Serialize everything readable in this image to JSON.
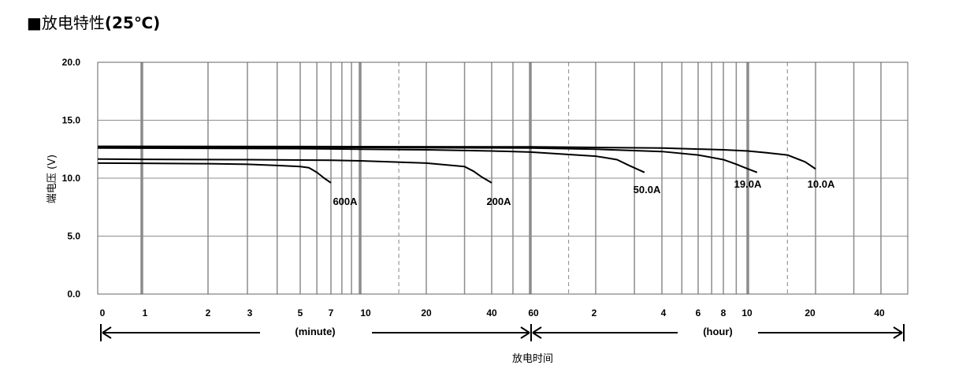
{
  "title": {
    "marker": "■",
    "text": "放电特性",
    "condition": "(25℃)"
  },
  "chart_data": {
    "type": "line",
    "title": "放电特性(25℃)",
    "ylabel": "端电压 (V)",
    "xlabel": "放电时间",
    "ylim": [
      0,
      20
    ],
    "y_ticks": [
      "0.0",
      "5.0",
      "10.0",
      "15.0",
      "20.0"
    ],
    "x_scale": "log",
    "x_segments": [
      {
        "unit": "(minute)",
        "ticks": [
          "0",
          "1",
          "2",
          "3",
          "5",
          "7",
          "10",
          "20",
          "40",
          "60"
        ]
      },
      {
        "unit": "(hour)",
        "ticks": [
          "2",
          "4",
          "6",
          "8",
          "10",
          "20",
          "40"
        ]
      }
    ],
    "grid": true,
    "series": [
      {
        "name": "600A",
        "x_minutes": [
          0,
          1,
          2,
          3,
          4,
          5,
          5.5,
          6,
          6.5,
          7
        ],
        "y": [
          11.3,
          11.28,
          11.25,
          11.2,
          11.1,
          11.0,
          10.9,
          10.5,
          10.0,
          9.6
        ]
      },
      {
        "name": "200A",
        "x_minutes": [
          0,
          1,
          3,
          7,
          10,
          20,
          30,
          33,
          36,
          40
        ],
        "y": [
          11.65,
          11.62,
          11.6,
          11.55,
          11.5,
          11.3,
          11.0,
          10.6,
          10.1,
          9.6
        ]
      },
      {
        "name": "50.0A",
        "x_minutes": [
          0,
          5,
          10,
          20,
          40,
          60,
          120,
          150,
          170,
          200
        ],
        "y": [
          12.6,
          12.55,
          12.5,
          12.45,
          12.35,
          12.25,
          11.9,
          11.6,
          11.1,
          10.5
        ]
      },
      {
        "name": "19.0A",
        "x_minutes": [
          0,
          10,
          60,
          120,
          240,
          360,
          480,
          540,
          600,
          660
        ],
        "y": [
          12.7,
          12.65,
          12.6,
          12.5,
          12.3,
          12.0,
          11.6,
          11.2,
          10.8,
          10.5
        ]
      },
      {
        "name": "10.0A",
        "x_minutes": [
          0,
          10,
          60,
          120,
          240,
          480,
          600,
          720,
          900,
          1080,
          1200
        ],
        "y": [
          12.75,
          12.72,
          12.7,
          12.65,
          12.6,
          12.45,
          12.35,
          12.2,
          12.0,
          11.4,
          10.8
        ]
      }
    ]
  }
}
